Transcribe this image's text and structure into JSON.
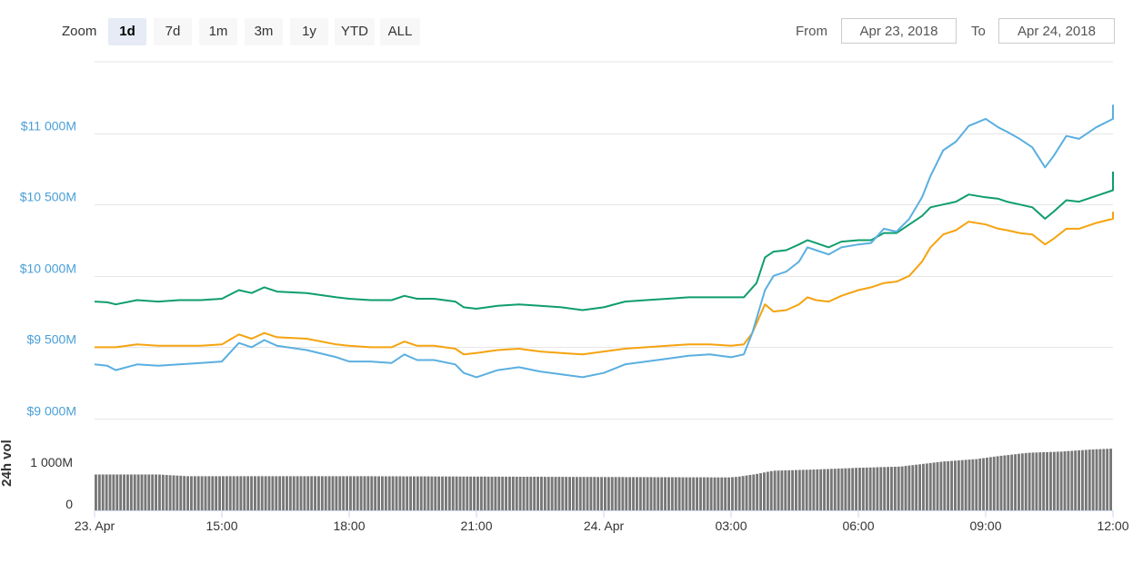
{
  "toolbar": {
    "zoom_label": "Zoom",
    "buttons": [
      {
        "label": "1d",
        "active": true
      },
      {
        "label": "7d",
        "active": false
      },
      {
        "label": "1m",
        "active": false
      },
      {
        "label": "3m",
        "active": false
      },
      {
        "label": "1y",
        "active": false
      },
      {
        "label": "YTD",
        "active": false
      },
      {
        "label": "ALL",
        "active": false
      }
    ],
    "from_label": "From",
    "from_value": "Apr 23, 2018",
    "to_label": "To",
    "to_value": "Apr 24, 2018"
  },
  "chart_data": {
    "type": "line",
    "x_unit": "hours from Apr 23 12:00",
    "x_range": [
      0,
      24
    ],
    "x_ticks": [
      {
        "value": 0,
        "label": "23. Apr"
      },
      {
        "value": 3,
        "label": "15:00"
      },
      {
        "value": 6,
        "label": "18:00"
      },
      {
        "value": 9,
        "label": "21:00"
      },
      {
        "value": 12,
        "label": "24. Apr"
      },
      {
        "value": 15,
        "label": "03:00"
      },
      {
        "value": 18,
        "label": "06:00"
      },
      {
        "value": 21,
        "label": "09:00"
      },
      {
        "value": 24,
        "label": "12:00"
      }
    ],
    "y_range": [
      9000,
      11500
    ],
    "y_ticks": [
      {
        "value": 9000,
        "label": "$9 000M"
      },
      {
        "value": 9500,
        "label": "$9 500M"
      },
      {
        "value": 10000,
        "label": "$10 000M"
      },
      {
        "value": 10500,
        "label": "$10 500M"
      },
      {
        "value": 11000,
        "label": "$11 000M"
      }
    ],
    "grid": true,
    "series": [
      {
        "color": "#0f9d6e",
        "points": [
          [
            0,
            9820
          ],
          [
            0.3,
            9815
          ],
          [
            0.5,
            9800
          ],
          [
            1,
            9830
          ],
          [
            1.5,
            9820
          ],
          [
            2,
            9830
          ],
          [
            2.5,
            9830
          ],
          [
            3,
            9840
          ],
          [
            3.4,
            9900
          ],
          [
            3.7,
            9880
          ],
          [
            4,
            9920
          ],
          [
            4.3,
            9890
          ],
          [
            5,
            9880
          ],
          [
            5.7,
            9850
          ],
          [
            6,
            9840
          ],
          [
            6.5,
            9830
          ],
          [
            7,
            9830
          ],
          [
            7.3,
            9860
          ],
          [
            7.6,
            9840
          ],
          [
            8,
            9840
          ],
          [
            8.5,
            9820
          ],
          [
            8.7,
            9780
          ],
          [
            9,
            9770
          ],
          [
            9.5,
            9790
          ],
          [
            10,
            9800
          ],
          [
            10.5,
            9790
          ],
          [
            11,
            9780
          ],
          [
            11.5,
            9760
          ],
          [
            12,
            9780
          ],
          [
            12.5,
            9820
          ],
          [
            13,
            9830
          ],
          [
            13.5,
            9840
          ],
          [
            14,
            9850
          ],
          [
            14.5,
            9850
          ],
          [
            15,
            9850
          ],
          [
            15.3,
            9850
          ],
          [
            15.6,
            9950
          ],
          [
            15.8,
            10130
          ],
          [
            16,
            10170
          ],
          [
            16.3,
            10180
          ],
          [
            16.6,
            10220
          ],
          [
            16.8,
            10250
          ],
          [
            17,
            10230
          ],
          [
            17.3,
            10200
          ],
          [
            17.6,
            10240
          ],
          [
            18,
            10250
          ],
          [
            18.3,
            10250
          ],
          [
            18.6,
            10300
          ],
          [
            18.9,
            10300
          ],
          [
            19.2,
            10360
          ],
          [
            19.5,
            10420
          ],
          [
            19.7,
            10480
          ],
          [
            20,
            10500
          ],
          [
            20.3,
            10520
          ],
          [
            20.6,
            10570
          ],
          [
            21,
            10550
          ],
          [
            21.3,
            10540
          ],
          [
            21.5,
            10520
          ],
          [
            21.8,
            10500
          ],
          [
            22.1,
            10480
          ],
          [
            22.4,
            10400
          ],
          [
            22.6,
            10450
          ],
          [
            22.9,
            10530
          ],
          [
            23.2,
            10520
          ],
          [
            23.6,
            10560
          ],
          [
            24,
            10600
          ],
          [
            24,
            10730
          ]
        ]
      },
      {
        "color": "#f5a30f",
        "points": [
          [
            0,
            9500
          ],
          [
            0.5,
            9500
          ],
          [
            1,
            9520
          ],
          [
            1.5,
            9510
          ],
          [
            2,
            9510
          ],
          [
            2.5,
            9510
          ],
          [
            3,
            9520
          ],
          [
            3.4,
            9590
          ],
          [
            3.7,
            9560
          ],
          [
            4,
            9600
          ],
          [
            4.3,
            9570
          ],
          [
            5,
            9560
          ],
          [
            5.7,
            9520
          ],
          [
            6,
            9510
          ],
          [
            6.5,
            9500
          ],
          [
            7,
            9500
          ],
          [
            7.3,
            9540
          ],
          [
            7.6,
            9510
          ],
          [
            8,
            9510
          ],
          [
            8.5,
            9490
          ],
          [
            8.7,
            9450
          ],
          [
            9,
            9460
          ],
          [
            9.5,
            9480
          ],
          [
            10,
            9490
          ],
          [
            10.5,
            9470
          ],
          [
            11,
            9460
          ],
          [
            11.5,
            9450
          ],
          [
            12,
            9470
          ],
          [
            12.5,
            9490
          ],
          [
            13,
            9500
          ],
          [
            13.5,
            9510
          ],
          [
            14,
            9520
          ],
          [
            14.5,
            9520
          ],
          [
            15,
            9510
          ],
          [
            15.3,
            9520
          ],
          [
            15.5,
            9600
          ],
          [
            15.8,
            9800
          ],
          [
            16,
            9750
          ],
          [
            16.3,
            9760
          ],
          [
            16.6,
            9800
          ],
          [
            16.8,
            9850
          ],
          [
            17,
            9830
          ],
          [
            17.3,
            9820
          ],
          [
            17.6,
            9860
          ],
          [
            18,
            9900
          ],
          [
            18.3,
            9920
          ],
          [
            18.6,
            9950
          ],
          [
            18.9,
            9960
          ],
          [
            19.2,
            10000
          ],
          [
            19.5,
            10100
          ],
          [
            19.7,
            10200
          ],
          [
            20,
            10290
          ],
          [
            20.3,
            10320
          ],
          [
            20.6,
            10380
          ],
          [
            21,
            10360
          ],
          [
            21.3,
            10330
          ],
          [
            21.5,
            10320
          ],
          [
            21.8,
            10300
          ],
          [
            22.1,
            10290
          ],
          [
            22.4,
            10220
          ],
          [
            22.6,
            10260
          ],
          [
            22.9,
            10330
          ],
          [
            23.2,
            10330
          ],
          [
            23.6,
            10370
          ],
          [
            24,
            10400
          ],
          [
            24,
            10450
          ]
        ]
      },
      {
        "color": "#5aafe0",
        "points": [
          [
            0,
            9380
          ],
          [
            0.3,
            9370
          ],
          [
            0.5,
            9340
          ],
          [
            1,
            9380
          ],
          [
            1.5,
            9370
          ],
          [
            2,
            9380
          ],
          [
            2.5,
            9390
          ],
          [
            3,
            9400
          ],
          [
            3.4,
            9530
          ],
          [
            3.7,
            9500
          ],
          [
            4,
            9550
          ],
          [
            4.3,
            9510
          ],
          [
            5,
            9480
          ],
          [
            5.7,
            9430
          ],
          [
            6,
            9400
          ],
          [
            6.5,
            9400
          ],
          [
            7,
            9390
          ],
          [
            7.3,
            9450
          ],
          [
            7.6,
            9410
          ],
          [
            8,
            9410
          ],
          [
            8.5,
            9380
          ],
          [
            8.7,
            9320
          ],
          [
            9,
            9290
          ],
          [
            9.5,
            9340
          ],
          [
            10,
            9360
          ],
          [
            10.5,
            9330
          ],
          [
            11,
            9310
          ],
          [
            11.5,
            9290
          ],
          [
            12,
            9320
          ],
          [
            12.5,
            9380
          ],
          [
            13,
            9400
          ],
          [
            13.5,
            9420
          ],
          [
            14,
            9440
          ],
          [
            14.5,
            9450
          ],
          [
            15,
            9430
          ],
          [
            15.3,
            9450
          ],
          [
            15.5,
            9600
          ],
          [
            15.8,
            9900
          ],
          [
            16,
            10000
          ],
          [
            16.3,
            10030
          ],
          [
            16.6,
            10100
          ],
          [
            16.8,
            10200
          ],
          [
            17,
            10180
          ],
          [
            17.3,
            10150
          ],
          [
            17.6,
            10200
          ],
          [
            18,
            10220
          ],
          [
            18.3,
            10230
          ],
          [
            18.6,
            10330
          ],
          [
            18.9,
            10310
          ],
          [
            19.2,
            10400
          ],
          [
            19.5,
            10550
          ],
          [
            19.7,
            10700
          ],
          [
            20,
            10880
          ],
          [
            20.3,
            10940
          ],
          [
            20.6,
            11050
          ],
          [
            21,
            11100
          ],
          [
            21.3,
            11040
          ],
          [
            21.5,
            11010
          ],
          [
            21.8,
            10960
          ],
          [
            22.1,
            10900
          ],
          [
            22.4,
            10760
          ],
          [
            22.6,
            10840
          ],
          [
            22.9,
            10980
          ],
          [
            23.2,
            10960
          ],
          [
            23.6,
            11040
          ],
          [
            24,
            11100
          ],
          [
            24,
            11200
          ]
        ]
      }
    ],
    "volume": {
      "ylabel": "24h vol",
      "y_range": [
        0,
        2200
      ],
      "y_ticks": [
        {
          "value": 0,
          "label": "0"
        },
        {
          "value": 1000,
          "label": "1 000M"
        }
      ],
      "bar_color": "#777777",
      "points": [
        [
          0,
          860
        ],
        [
          1.5,
          860
        ],
        [
          2.2,
          820
        ],
        [
          6,
          820
        ],
        [
          9,
          810
        ],
        [
          12,
          800
        ],
        [
          15,
          790
        ],
        [
          15.2,
          810
        ],
        [
          15.6,
          870
        ],
        [
          16,
          950
        ],
        [
          17,
          980
        ],
        [
          18,
          1020
        ],
        [
          19,
          1050
        ],
        [
          20,
          1170
        ],
        [
          20.8,
          1230
        ],
        [
          21.3,
          1300
        ],
        [
          22,
          1380
        ],
        [
          22.8,
          1410
        ],
        [
          23.5,
          1460
        ],
        [
          24,
          1480
        ]
      ]
    }
  }
}
